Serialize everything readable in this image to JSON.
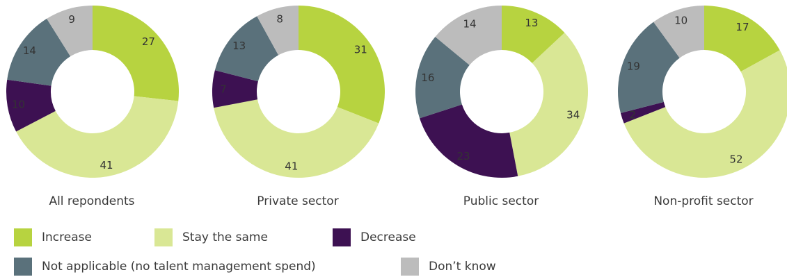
{
  "colors": {
    "increase": "#b7d340",
    "stay_the_same": "#d9e795",
    "decrease": "#3d1152",
    "not_applicable": "#5a717b",
    "dont_know": "#bcbcbc"
  },
  "legend": [
    {
      "key": "increase",
      "label": "Increase"
    },
    {
      "key": "stay_the_same",
      "label": "Stay the same"
    },
    {
      "key": "decrease",
      "label": "Decrease"
    },
    {
      "key": "not_applicable",
      "label": "Not applicable (no talent management spend)"
    },
    {
      "key": "dont_know",
      "label": "Don’t know"
    }
  ],
  "chart_data": [
    {
      "type": "pie",
      "title": "All repondents",
      "slices": [
        {
          "key": "increase",
          "label": "Increase",
          "value": 27
        },
        {
          "key": "stay_the_same",
          "label": "Stay the same",
          "value": 41
        },
        {
          "key": "decrease",
          "label": "Decrease",
          "value": 10
        },
        {
          "key": "not_applicable",
          "label": "Not applicable (no talent management spend)",
          "value": 14
        },
        {
          "key": "dont_know",
          "label": "Don’t know",
          "value": 9
        }
      ]
    },
    {
      "type": "pie",
      "title": "Private sector",
      "slices": [
        {
          "key": "increase",
          "label": "Increase",
          "value": 31
        },
        {
          "key": "stay_the_same",
          "label": "Stay the same",
          "value": 41
        },
        {
          "key": "decrease",
          "label": "Decrease",
          "value": 7
        },
        {
          "key": "not_applicable",
          "label": "Not applicable (no talent management spend)",
          "value": 13
        },
        {
          "key": "dont_know",
          "label": "Don’t know",
          "value": 8
        }
      ]
    },
    {
      "type": "pie",
      "title": "Public sector",
      "slices": [
        {
          "key": "increase",
          "label": "Increase",
          "value": 13
        },
        {
          "key": "stay_the_same",
          "label": "Stay the same",
          "value": 34
        },
        {
          "key": "decrease",
          "label": "Decrease",
          "value": 23
        },
        {
          "key": "not_applicable",
          "label": "Not applicable (no talent management spend)",
          "value": 16
        },
        {
          "key": "dont_know",
          "label": "Don’t know",
          "value": 14
        }
      ]
    },
    {
      "type": "pie",
      "title": "Non-profit sector",
      "slices": [
        {
          "key": "increase",
          "label": "Increase",
          "value": 17
        },
        {
          "key": "stay_the_same",
          "label": "Stay the same",
          "value": 52
        },
        {
          "key": "decrease",
          "label": "Decrease",
          "value": 2
        },
        {
          "key": "not_applicable",
          "label": "Not applicable (no talent management spend)",
          "value": 19
        },
        {
          "key": "dont_know",
          "label": "Don’t know",
          "value": 10
        }
      ]
    }
  ]
}
